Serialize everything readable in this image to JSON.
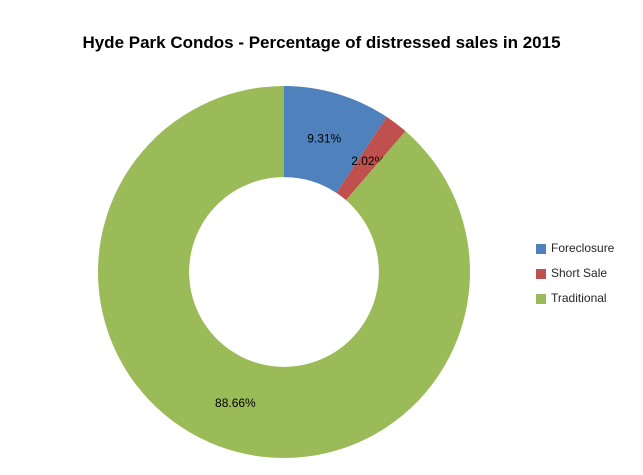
{
  "title": "Hyde Park Condos - Percentage of distressed sales in 2015",
  "chart_data": {
    "type": "pie",
    "subtype": "donut",
    "title": "Hyde Park Condos - Percentage of distressed sales in 2015",
    "categories": [
      "Foreclosure",
      "Short Sale",
      "Traditional"
    ],
    "values": [
      9.31,
      2.02,
      88.66
    ],
    "data_labels": [
      "9.31%",
      "2.02%",
      "88.66%"
    ],
    "colors": [
      "#4f81bd",
      "#c0504d",
      "#9bbb59"
    ],
    "start_angle_deg": 0,
    "direction": "clockwise",
    "donut_hole_ratio": 0.51,
    "legend_position": "right",
    "label_color": "#000000",
    "background_color": "#ffffff"
  },
  "legend": {
    "items": [
      {
        "label": "Foreclosure",
        "color": "#4f81bd"
      },
      {
        "label": "Short Sale",
        "color": "#c0504d"
      },
      {
        "label": "Traditional",
        "color": "#9bbb59"
      }
    ]
  }
}
